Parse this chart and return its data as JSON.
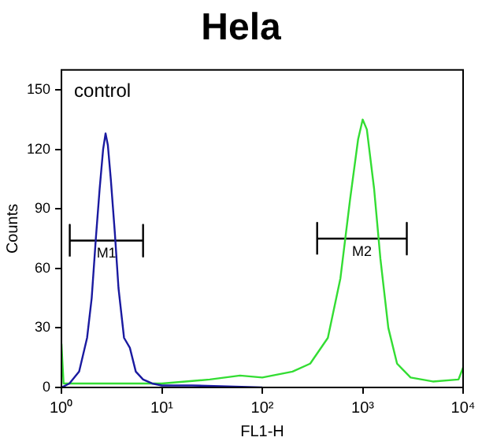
{
  "chart_data": {
    "type": "line",
    "title": "Hela",
    "xlabel": "FL1-H",
    "ylabel": "Counts",
    "log": "x",
    "xlim": [
      1,
      10000
    ],
    "xticks": [
      {
        "value": 1,
        "label": "10⁰"
      },
      {
        "value": 10,
        "label": "10¹"
      },
      {
        "value": 100,
        "label": "10²"
      },
      {
        "value": 1000,
        "label": "10³"
      },
      {
        "value": 10000,
        "label": "10⁴"
      }
    ],
    "ylim": [
      0,
      160
    ],
    "yticks": [
      0,
      30,
      60,
      90,
      120,
      150
    ],
    "grid": false,
    "legend": false,
    "marker": "none",
    "line_style": "solid",
    "series": [
      {
        "color": "#1a1aa0",
        "x": [
          1,
          1.2,
          1.5,
          1.8,
          2,
          2.2,
          2.4,
          2.6,
          2.75,
          2.9,
          3.1,
          3.4,
          3.7,
          4.2,
          4.8,
          5.5,
          6.5,
          8,
          10,
          20,
          100
        ],
        "values": [
          0,
          2,
          8,
          25,
          45,
          75,
          100,
          120,
          128,
          122,
          105,
          78,
          50,
          25,
          20,
          8,
          4,
          2,
          1,
          1,
          0
        ]
      },
      {
        "color": "#33dd33",
        "x": [
          1,
          1.05,
          2,
          10,
          30,
          60,
          100,
          200,
          300,
          450,
          600,
          750,
          900,
          1000,
          1100,
          1300,
          1500,
          1800,
          2200,
          3000,
          5000,
          9000,
          10000
        ],
        "values": [
          22,
          2,
          2,
          2,
          4,
          6,
          5,
          8,
          12,
          25,
          55,
          95,
          125,
          135,
          130,
          100,
          65,
          30,
          12,
          5,
          3,
          4,
          10
        ]
      },
      {
        "name": "M1",
        "color": "#000000",
        "x": [
          1.21,
          1.21,
          1.21,
          6.5,
          6.5,
          6.5
        ],
        "values": [
          66,
          82,
          74,
          74,
          82,
          66
        ]
      },
      {
        "name": "M2",
        "color": "#000000",
        "x": [
          352,
          352,
          352,
          2750,
          2750,
          2750
        ],
        "values": [
          67,
          83,
          75,
          75,
          83,
          67
        ]
      }
    ],
    "annotations": [
      "control"
    ]
  }
}
